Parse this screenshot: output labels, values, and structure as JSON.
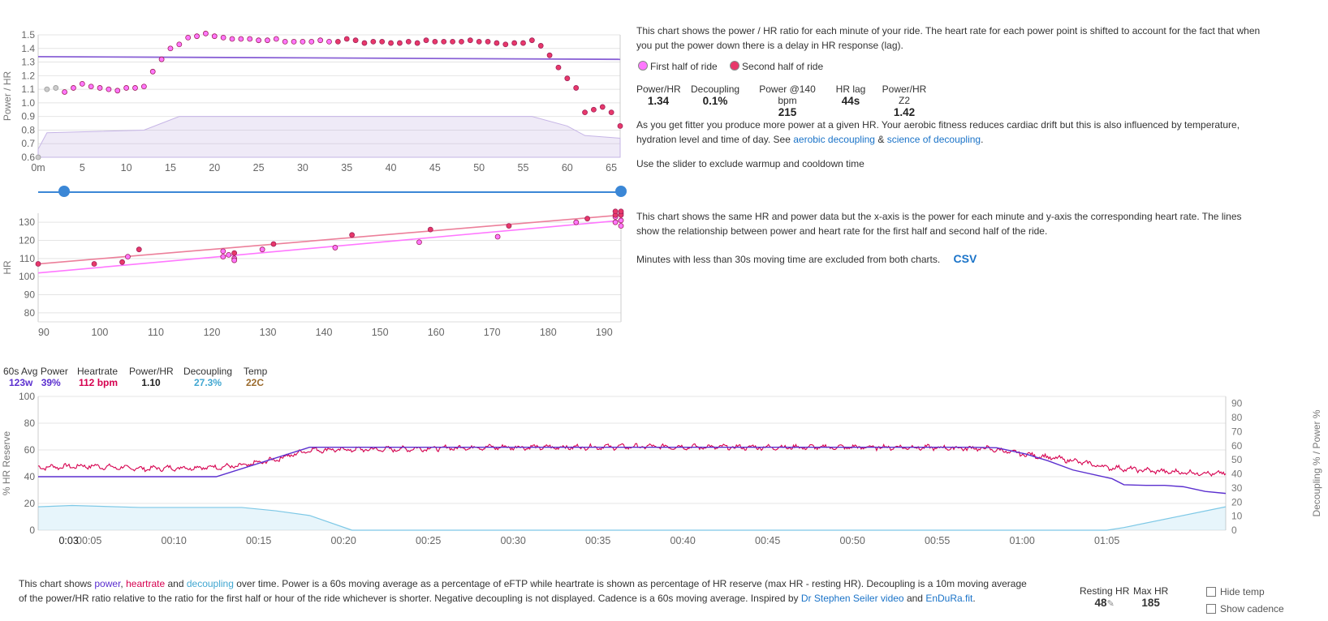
{
  "colors": {
    "first_half": "#ff77ff",
    "second_half": "#e8386a",
    "power": "#5b2fcf",
    "heartrate": "#d6004f",
    "decoupling": "#41a7d1",
    "temp": "#9b6b2e",
    "link": "#1a73c8",
    "slider": "#3b87d6"
  },
  "chart_data": [
    {
      "type": "scatter",
      "ylabel": "Power / HR",
      "xlabel": "",
      "xlim": [
        0,
        66
      ],
      "ylim": [
        0.6,
        1.5
      ],
      "xticks": [
        {
          "v": 0,
          "l": "0m"
        },
        {
          "v": 5,
          "l": "5"
        },
        {
          "v": 10,
          "l": "10"
        },
        {
          "v": 15,
          "l": "15"
        },
        {
          "v": 20,
          "l": "20"
        },
        {
          "v": 25,
          "l": "25"
        },
        {
          "v": 30,
          "l": "30"
        },
        {
          "v": 35,
          "l": "35"
        },
        {
          "v": 40,
          "l": "40"
        },
        {
          "v": 45,
          "l": "45"
        },
        {
          "v": 50,
          "l": "50"
        },
        {
          "v": 55,
          "l": "55"
        },
        {
          "v": 60,
          "l": "60"
        },
        {
          "v": 65,
          "l": "65"
        }
      ],
      "yticks": [
        "0.6",
        "0.7",
        "0.8",
        "0.9",
        "1.0",
        "1.1",
        "1.2",
        "1.3",
        "1.4",
        "1.5"
      ],
      "excluded_points": [
        [
          0,
          0.6
        ],
        [
          1,
          1.1
        ],
        [
          2,
          1.11
        ]
      ],
      "series": [
        {
          "name": "First half of ride",
          "points": [
            [
              3,
              1.08
            ],
            [
              4,
              1.11
            ],
            [
              5,
              1.14
            ],
            [
              6,
              1.12
            ],
            [
              7,
              1.11
            ],
            [
              8,
              1.1
            ],
            [
              9,
              1.09
            ],
            [
              10,
              1.11
            ],
            [
              11,
              1.11
            ],
            [
              12,
              1.12
            ],
            [
              13,
              1.23
            ],
            [
              14,
              1.32
            ],
            [
              15,
              1.4
            ],
            [
              16,
              1.43
            ],
            [
              17,
              1.48
            ],
            [
              18,
              1.49
            ],
            [
              19,
              1.51
            ],
            [
              20,
              1.49
            ],
            [
              21,
              1.48
            ],
            [
              22,
              1.47
            ],
            [
              23,
              1.47
            ],
            [
              24,
              1.47
            ],
            [
              25,
              1.46
            ],
            [
              26,
              1.46
            ],
            [
              27,
              1.47
            ],
            [
              28,
              1.45
            ],
            [
              29,
              1.45
            ],
            [
              30,
              1.45
            ],
            [
              31,
              1.45
            ],
            [
              32,
              1.46
            ],
            [
              33,
              1.45
            ]
          ]
        },
        {
          "name": "Second half of ride",
          "points": [
            [
              34,
              1.45
            ],
            [
              35,
              1.47
            ],
            [
              36,
              1.46
            ],
            [
              37,
              1.44
            ],
            [
              38,
              1.45
            ],
            [
              39,
              1.45
            ],
            [
              40,
              1.44
            ],
            [
              41,
              1.44
            ],
            [
              42,
              1.45
            ],
            [
              43,
              1.44
            ],
            [
              44,
              1.46
            ],
            [
              45,
              1.45
            ],
            [
              46,
              1.45
            ],
            [
              47,
              1.45
            ],
            [
              48,
              1.45
            ],
            [
              49,
              1.46
            ],
            [
              50,
              1.45
            ],
            [
              51,
              1.45
            ],
            [
              52,
              1.44
            ],
            [
              53,
              1.43
            ],
            [
              54,
              1.44
            ],
            [
              55,
              1.44
            ],
            [
              56,
              1.46
            ],
            [
              57,
              1.42
            ],
            [
              58,
              1.35
            ],
            [
              59,
              1.26
            ],
            [
              60,
              1.18
            ],
            [
              61,
              1.11
            ],
            [
              62,
              0.93
            ],
            [
              63,
              0.95
            ],
            [
              64,
              0.97
            ],
            [
              65,
              0.93
            ],
            [
              66,
              0.83
            ]
          ]
        }
      ],
      "trend": {
        "x": [
          0,
          66
        ],
        "y": [
          1.34,
          1.32
        ]
      },
      "area": {
        "x": [
          0,
          1,
          12,
          16,
          20,
          56,
          60,
          62,
          66
        ],
        "y": [
          0.66,
          0.78,
          0.8,
          0.9,
          0.9,
          0.9,
          0.83,
          0.76,
          0.74
        ]
      }
    },
    {
      "type": "scatter",
      "ylabel": "HR",
      "xlabel": "",
      "xlim": [
        89,
        193
      ],
      "ylim": [
        75,
        135
      ],
      "xticks": [
        "90",
        "100",
        "110",
        "120",
        "130",
        "140",
        "150",
        "160",
        "170",
        "180",
        "190"
      ],
      "yticks": [
        "80",
        "90",
        "100",
        "110",
        "120",
        "130"
      ],
      "series": [
        {
          "name": "First half of ride",
          "points": [
            [
              105,
              111
            ],
            [
              122,
              114
            ],
            [
              123,
              112
            ],
            [
              124,
              110
            ],
            [
              124,
              109
            ],
            [
              122,
              111
            ],
            [
              129,
              115
            ],
            [
              142,
              116
            ],
            [
              157,
              119
            ],
            [
              171,
              122
            ],
            [
              185,
              130
            ],
            [
              192,
              130
            ],
            [
              193,
              128
            ],
            [
              193,
              131
            ],
            [
              192,
              133
            ]
          ],
          "line": {
            "x": [
              89,
              193
            ],
            "y": [
              102,
              131
            ]
          }
        },
        {
          "name": "Second half of ride",
          "points": [
            [
              89,
              107
            ],
            [
              99,
              107
            ],
            [
              104,
              108
            ],
            [
              107,
              115
            ],
            [
              124,
              113
            ],
            [
              131,
              118
            ],
            [
              145,
              123
            ],
            [
              159,
              126
            ],
            [
              173,
              128
            ],
            [
              187,
              132
            ],
            [
              192,
              134
            ],
            [
              193,
              135
            ],
            [
              192,
              136
            ],
            [
              193,
              134
            ],
            [
              193,
              136
            ]
          ],
          "line": {
            "x": [
              89,
              193
            ],
            "y": [
              107,
              134
            ]
          }
        }
      ]
    },
    {
      "type": "line",
      "ylabel": "% HR Reserve",
      "y2label": "Decoupling % / Power %",
      "xlim": [
        2,
        72
      ],
      "ylim": [
        0,
        100
      ],
      "y2lim": [
        0,
        95
      ],
      "xticks": [
        "00:05",
        "00:10",
        "00:15",
        "00:20",
        "00:25",
        "00:30",
        "00:35",
        "00:40",
        "00:45",
        "00:50",
        "00:55",
        "01:00",
        "01:05"
      ],
      "xtick_values": [
        5,
        10,
        15,
        20,
        25,
        30,
        35,
        40,
        45,
        50,
        55,
        60,
        65
      ],
      "yticks": [
        "0",
        "20",
        "40",
        "60",
        "80",
        "100"
      ],
      "y2ticks": [
        "0",
        "10",
        "20",
        "30",
        "40",
        "50",
        "60",
        "70",
        "80",
        "90"
      ],
      "cursor_label": "0:03",
      "series": [
        {
          "name": "power",
          "x": [
            2,
            12.5,
            18,
            30,
            42,
            57,
            58.5,
            60.2,
            61.5,
            63,
            65.3,
            66,
            67.3,
            68.4,
            69.5,
            70.8,
            72
          ],
          "y": [
            40,
            40,
            62,
            62,
            62,
            62,
            61.6,
            57,
            52,
            45,
            38.5,
            34,
            33.5,
            33.5,
            32.5,
            29,
            27.5
          ]
        },
        {
          "name": "heartrate",
          "x": [
            2,
            5,
            8,
            12,
            14,
            16,
            18,
            23,
            28,
            33,
            38,
            43,
            48,
            53,
            58,
            60,
            63,
            65,
            68,
            72
          ],
          "y": [
            47,
            48,
            46,
            47,
            48,
            53,
            60,
            60.5,
            62,
            62,
            62.5,
            62,
            62,
            62,
            61,
            57,
            52,
            47,
            44,
            42
          ]
        },
        {
          "name": "decoupling",
          "x": [
            2,
            4,
            8,
            12,
            14,
            16,
            18,
            20.5,
            27,
            32,
            37,
            45,
            55,
            65,
            66,
            72
          ],
          "y": [
            17.5,
            18.5,
            17,
            17,
            17,
            14.5,
            11,
            0,
            0,
            0,
            0,
            0,
            0,
            0,
            2,
            17.5
          ]
        }
      ]
    }
  ],
  "top_chart": {
    "description": "This chart shows the power / HR ratio for each minute of your ride. The heart rate for each power point is shifted to account for the fact that when you put the power down there is a delay in HR response (lag).",
    "legend": [
      "First half of ride",
      "Second half of ride"
    ],
    "stats": [
      {
        "label": "Power/HR",
        "value": "1.34"
      },
      {
        "label": "Decoupling",
        "value": "0.1%"
      },
      {
        "label": "Power @140 bpm",
        "value": "215"
      },
      {
        "label": "HR lag",
        "value": "44s"
      },
      {
        "label": "Power/HR Z2",
        "value": "1.42"
      }
    ],
    "fitness_text": "As you get fitter you produce more power at a given HR. Your aerobic fitness reduces cardiac drift but this is also influenced by temperature, hydration level and time of day. See",
    "link_aerobic": "aerobic decoupling",
    "amp": "&",
    "link_science": "science of decoupling",
    "period": ".",
    "slider_text": "Use the slider to exclude warmup and cooldown time",
    "slider_range": [
      3,
      66
    ]
  },
  "mid_chart": {
    "description": "This chart shows the same HR and power data but the x-axis is the power for each minute and y-axis the corresponding heart rate. The lines show the relationship between power and heart rate for the first half and second half of the ride.",
    "note": "Minutes with less than 30s moving time are excluded from both charts.",
    "csv": "CSV"
  },
  "bottom_header": {
    "avg_label": "60s Avg Power",
    "power_w": "123w",
    "power_pct": "39%",
    "hr_label": "Heartrate",
    "hr_value": "112 bpm",
    "phr_label": "Power/HR",
    "phr_value": "1.10",
    "dec_label": "Decoupling",
    "dec_value": "27.3%",
    "temp_label": "Temp",
    "temp_value": "22C"
  },
  "footer": {
    "t1": "This chart shows",
    "w_power": "power",
    "c1": ",",
    "w_hr": "heartrate",
    "t2": "and",
    "w_dec": "decoupling",
    "t3": "over time. Power is a 60s moving average as a percentage of eFTP while heartrate is shown as percentage of HR reserve (max HR - resting HR). Decoupling is a 10m moving average of the power/HR ratio relative to the ratio for the first half or hour of the ride whichever is shorter. Negative decoupling is not displayed. Cadence is a 60s moving average. Inspired by",
    "link_seiler": "Dr Stephen Seiler video",
    "t4": "and",
    "link_endura": "EnDuRa.fit",
    "t5": ".",
    "resting_label": "Resting HR",
    "resting_value": "48",
    "max_label": "Max HR",
    "max_value": "185",
    "hide_temp": "Hide temp",
    "show_cadence": "Show cadence"
  }
}
